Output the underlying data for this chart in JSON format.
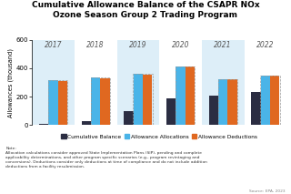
{
  "title": "Cumulative Allowance Balance of the CSAPR NOx\nOzone Season Group 2 Trading Program",
  "years": [
    "2017",
    "2018",
    "2019",
    "2020",
    "2021",
    "2022"
  ],
  "allocations": [
    315,
    335,
    360,
    415,
    325,
    350
  ],
  "deductions": [
    310,
    330,
    355,
    410,
    325,
    345
  ],
  "cum_balance": [
    10,
    25,
    100,
    185,
    205,
    235
  ],
  "color_alloc": "#4ab4e8",
  "color_deduct": "#e06820",
  "color_balance": "#2b2d42",
  "color_bg_odd": "#ddeef8",
  "color_bg_even": "#ffffff",
  "ylabel": "Allowances (thousand)",
  "ylim": [
    0,
    600
  ],
  "yticks": [
    0,
    200,
    400,
    600
  ],
  "legend_labels": [
    "Cumulative Balance",
    "Allowance Allocations",
    "Allowance Deductions"
  ],
  "note_text": "Note:\nAllocation calculations consider approved State Implementation Plans (SIP), pending and complete\napplicability determinations, and other program specific scenarios (e.g., program revintaging and\nconversions). Deductions consider only deductions at time of compliance and do not include addition\ndeductions from a facility resubmission.",
  "source_text": "Source: EPA, 2023",
  "bar_width": 0.22
}
